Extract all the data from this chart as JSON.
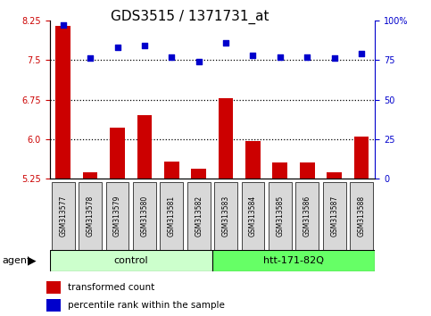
{
  "title": "GDS3515 / 1371731_at",
  "samples": [
    "GSM313577",
    "GSM313578",
    "GSM313579",
    "GSM313580",
    "GSM313581",
    "GSM313582",
    "GSM313583",
    "GSM313584",
    "GSM313585",
    "GSM313586",
    "GSM313587",
    "GSM313588"
  ],
  "bar_values": [
    8.15,
    5.37,
    6.22,
    6.45,
    5.57,
    5.43,
    6.78,
    5.97,
    5.56,
    5.56,
    5.37,
    6.05
  ],
  "dot_values": [
    97,
    76,
    83,
    84,
    77,
    74,
    86,
    78,
    77,
    77,
    76,
    79
  ],
  "ylim_left": [
    5.25,
    8.25
  ],
  "ylim_right": [
    0,
    100
  ],
  "yticks_left": [
    5.25,
    6.0,
    6.75,
    7.5,
    8.25
  ],
  "yticks_right": [
    0,
    25,
    50,
    75,
    100
  ],
  "hlines": [
    6.0,
    6.75,
    7.5
  ],
  "bar_color": "#cc0000",
  "dot_color": "#0000cc",
  "bar_width": 0.55,
  "n_control": 6,
  "n_treatment": 6,
  "control_label": "control",
  "treatment_label": "htt-171-82Q",
  "control_color": "#ccffcc",
  "treatment_color": "#66ff66",
  "xlabel_row": "agent",
  "legend_bar_label": "transformed count",
  "legend_dot_label": "percentile rank within the sample",
  "title_fontsize": 11,
  "tick_fontsize": 7,
  "bg_color": "#d8d8d8",
  "ax_bg_color": "#ffffff"
}
